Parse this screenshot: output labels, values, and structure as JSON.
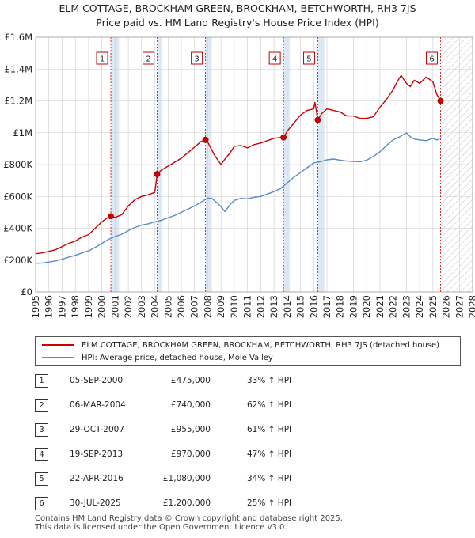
{
  "title_line1": "ELM COTTAGE, BROCKHAM GREEN, BROCKHAM, BETCHWORTH, RH3 7JS",
  "title_line2": "Price paid vs. HM Land Registry's House Price Index (HPI)",
  "colors": {
    "property": "#cc0000",
    "hpi": "#5b8ac5",
    "shade": "#dde8f5",
    "grid": "#cccccc"
  },
  "legend": {
    "property": "ELM COTTAGE, BROCKHAM GREEN, BROCKHAM, BETCHWORTH, RH3 7JS (detached house)",
    "hpi": "HPI: Average price, detached house, Mole Valley"
  },
  "sales": [
    {
      "num": "1",
      "date": "05-SEP-2000",
      "price": "£475,000",
      "hpi": "33% ↑ HPI"
    },
    {
      "num": "2",
      "date": "06-MAR-2004",
      "price": "£740,000",
      "hpi": "62% ↑ HPI"
    },
    {
      "num": "3",
      "date": "29-OCT-2007",
      "price": "£955,000",
      "hpi": "61% ↑ HPI"
    },
    {
      "num": "4",
      "date": "19-SEP-2013",
      "price": "£970,000",
      "hpi": "47% ↑ HPI"
    },
    {
      "num": "5",
      "date": "22-APR-2016",
      "price": "£1,080,000",
      "hpi": "34% ↑ HPI"
    },
    {
      "num": "6",
      "date": "30-JUL-2025",
      "price": "£1,200,000",
      "hpi": "25% ↑ HPI"
    }
  ],
  "footer_line1": "Contains HM Land Registry data © Crown copyright and database right 2025.",
  "footer_line2": "This data is licensed under the Open Government Licence v3.0.",
  "chart_data": {
    "type": "line",
    "title": "ELM COTTAGE, BROCKHAM GREEN, BROCKHAM, BETCHWORTH, RH3 7JS - Price paid vs. HM Land Registry's House Price Index (HPI)",
    "xlabel": "",
    "ylabel": "",
    "xlim": [
      1995,
      2028
    ],
    "ylim": [
      0,
      1600000
    ],
    "x_ticks": [
      1995,
      1996,
      1997,
      1998,
      1999,
      2000,
      2001,
      2002,
      2003,
      2004,
      2005,
      2006,
      2007,
      2008,
      2009,
      2010,
      2011,
      2012,
      2013,
      2014,
      2015,
      2016,
      2017,
      2018,
      2019,
      2020,
      2021,
      2022,
      2023,
      2024,
      2025,
      2026,
      2027,
      2028
    ],
    "y_ticks": [
      0,
      200000,
      400000,
      600000,
      800000,
      1000000,
      1200000,
      1400000,
      1600000
    ],
    "y_tick_labels": [
      "£0",
      "£200K",
      "£400K",
      "£600K",
      "£800K",
      "£1M",
      "£1.2M",
      "£1.4M",
      "£1.6M"
    ],
    "shaded_regions": [
      [
        2000.68,
        2001.3
      ],
      [
        2004.18,
        2004.5
      ],
      [
        2007.83,
        2008.3
      ],
      [
        2013.72,
        2014.2
      ],
      [
        2016.31,
        2016.8
      ],
      [
        2025.58,
        2028
      ]
    ],
    "hatched_region": [
      2025.58,
      2028
    ],
    "sale_markers": [
      {
        "label": "1",
        "x": 2000.68,
        "y": 475000
      },
      {
        "label": "2",
        "x": 2004.18,
        "y": 740000
      },
      {
        "label": "3",
        "x": 2007.83,
        "y": 955000
      },
      {
        "label": "4",
        "x": 2013.72,
        "y": 970000
      },
      {
        "label": "5",
        "x": 2016.31,
        "y": 1080000
      },
      {
        "label": "6",
        "x": 2025.58,
        "y": 1200000
      }
    ],
    "series": [
      {
        "name": "ELM COTTAGE, BROCKHAM GREEN, BROCKHAM, BETCHWORTH, RH3 7JS (detached house)",
        "x": [
          1995,
          1995.5,
          1996,
          1996.5,
          1997,
          1997.5,
          1998,
          1998.5,
          1999,
          1999.5,
          2000,
          2000.5,
          2000.68,
          2001,
          2001.5,
          2002,
          2002.5,
          2003,
          2003.5,
          2004,
          2004.18,
          2004.5,
          2005,
          2005.5,
          2006,
          2006.5,
          2007,
          2007.5,
          2007.83,
          2008,
          2008.5,
          2009,
          2009.3,
          2009.7,
          2010,
          2010.5,
          2011,
          2011.5,
          2012,
          2012.5,
          2013,
          2013.5,
          2013.72,
          2014,
          2014.5,
          2015,
          2015.5,
          2016,
          2016.1,
          2016.31,
          2016.6,
          2017,
          2017.5,
          2018,
          2018.5,
          2019,
          2019.5,
          2020,
          2020.5,
          2021,
          2021.5,
          2022,
          2022.3,
          2022.6,
          2023,
          2023.3,
          2023.6,
          2024,
          2024.5,
          2025,
          2025.3,
          2025.58
        ],
        "y": [
          240000,
          245000,
          255000,
          265000,
          285000,
          305000,
          320000,
          345000,
          360000,
          400000,
          440000,
          470000,
          475000,
          468000,
          485000,
          540000,
          580000,
          600000,
          610000,
          625000,
          740000,
          765000,
          790000,
          815000,
          840000,
          875000,
          910000,
          945000,
          955000,
          940000,
          860000,
          800000,
          835000,
          875000,
          915000,
          920000,
          905000,
          925000,
          935000,
          950000,
          965000,
          970000,
          970000,
          1010000,
          1060000,
          1110000,
          1140000,
          1150000,
          1190000,
          1080000,
          1120000,
          1150000,
          1140000,
          1130000,
          1105000,
          1105000,
          1090000,
          1090000,
          1100000,
          1160000,
          1210000,
          1270000,
          1320000,
          1360000,
          1310000,
          1290000,
          1330000,
          1310000,
          1350000,
          1320000,
          1240000,
          1200000
        ]
      },
      {
        "name": "HPI: Average price, detached house, Mole Valley",
        "x": [
          1995,
          1995.5,
          1996,
          1996.5,
          1997,
          1997.5,
          1998,
          1998.5,
          1999,
          1999.5,
          2000,
          2000.5,
          2001,
          2001.5,
          2002,
          2002.5,
          2003,
          2003.5,
          2004,
          2004.5,
          2005,
          2005.5,
          2006,
          2006.5,
          2007,
          2007.5,
          2008,
          2008.3,
          2008.7,
          2009,
          2009.3,
          2009.7,
          2010,
          2010.5,
          2011,
          2011.5,
          2012,
          2012.5,
          2013,
          2013.5,
          2014,
          2014.5,
          2015,
          2015.5,
          2016,
          2016.5,
          2017,
          2017.5,
          2018,
          2018.5,
          2019,
          2019.5,
          2020,
          2020.5,
          2021,
          2021.5,
          2022,
          2022.5,
          2023,
          2023.3,
          2023.6,
          2024,
          2024.5,
          2025,
          2025.3,
          2025.5
        ],
        "y": [
          180000,
          182000,
          188000,
          195000,
          205000,
          218000,
          230000,
          245000,
          258000,
          280000,
          305000,
          330000,
          348000,
          362000,
          385000,
          405000,
          420000,
          428000,
          440000,
          450000,
          465000,
          480000,
          500000,
          520000,
          540000,
          565000,
          590000,
          588000,
          560000,
          535000,
          505000,
          550000,
          575000,
          588000,
          585000,
          595000,
          600000,
          615000,
          630000,
          650000,
          685000,
          720000,
          750000,
          780000,
          810000,
          818000,
          830000,
          835000,
          828000,
          822000,
          820000,
          818000,
          828000,
          850000,
          880000,
          920000,
          955000,
          975000,
          1000000,
          975000,
          960000,
          955000,
          950000,
          965000,
          955000,
          960000
        ]
      }
    ]
  }
}
